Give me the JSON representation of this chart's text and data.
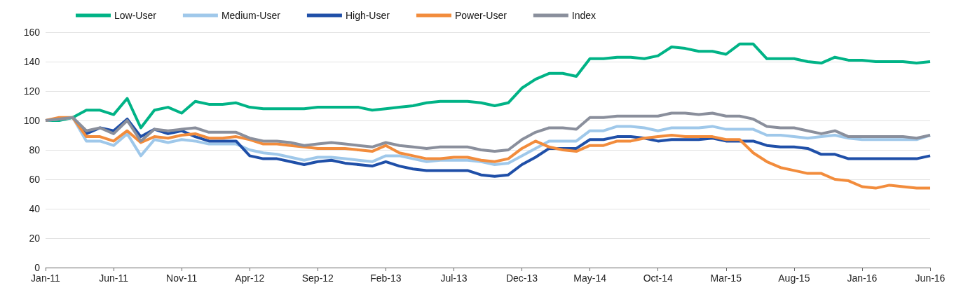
{
  "chart_data": {
    "type": "line",
    "categories": [
      "Jan-11",
      null,
      null,
      null,
      null,
      "Jun-11",
      null,
      null,
      null,
      null,
      "Nov-11",
      null,
      null,
      null,
      null,
      "Apr-12",
      null,
      null,
      null,
      null,
      "Sep-12",
      null,
      null,
      null,
      null,
      "Feb-13",
      null,
      null,
      null,
      null,
      "Jul-13",
      null,
      null,
      null,
      null,
      "Dec-13",
      null,
      null,
      null,
      null,
      "May-14",
      null,
      null,
      null,
      null,
      "Oct-14",
      null,
      null,
      null,
      null,
      "Mar-15",
      null,
      null,
      null,
      null,
      "Aug-15",
      null,
      null,
      null,
      null,
      "Jan-16",
      null,
      null,
      null,
      null,
      "Jun-16"
    ],
    "series": [
      {
        "name": "Low-User",
        "color": "#00b386",
        "values": [
          100,
          100,
          102,
          107,
          107,
          104,
          115,
          95,
          107,
          109,
          105,
          113,
          111,
          111,
          112,
          109,
          108,
          108,
          108,
          108,
          109,
          109,
          109,
          109,
          107,
          108,
          109,
          110,
          112,
          113,
          113,
          113,
          112,
          110,
          112,
          122,
          128,
          132,
          132,
          130,
          142,
          142,
          143,
          143,
          142,
          144,
          150,
          149,
          147,
          147,
          145,
          152,
          152,
          142,
          142,
          142,
          140,
          139,
          143,
          141,
          141,
          140,
          140,
          140,
          139,
          140
        ]
      },
      {
        "name": "Medium-User",
        "color": "#9fc8ea",
        "values": [
          100,
          101,
          102,
          86,
          86,
          83,
          91,
          76,
          87,
          85,
          87,
          86,
          84,
          84,
          84,
          80,
          78,
          77,
          75,
          73,
          75,
          75,
          74,
          73,
          72,
          76,
          76,
          74,
          72,
          73,
          73,
          73,
          72,
          70,
          71,
          76,
          81,
          86,
          86,
          86,
          93,
          93,
          96,
          96,
          95,
          93,
          95,
          95,
          95,
          96,
          94,
          94,
          94,
          90,
          90,
          89,
          88,
          89,
          90,
          88,
          87,
          87,
          87,
          87,
          87,
          90
        ]
      },
      {
        "name": "High-User",
        "color": "#1f4fa8",
        "values": [
          null,
          null,
          102,
          91,
          95,
          93,
          101,
          89,
          94,
          91,
          93,
          89,
          86,
          86,
          86,
          76,
          74,
          74,
          72,
          70,
          72,
          73,
          71,
          70,
          69,
          72,
          69,
          67,
          66,
          66,
          66,
          66,
          63,
          62,
          63,
          70,
          75,
          81,
          81,
          81,
          87,
          87,
          89,
          89,
          88,
          86,
          87,
          87,
          87,
          88,
          86,
          86,
          86,
          83,
          82,
          82,
          81,
          77,
          77,
          74,
          74,
          74,
          74,
          74,
          74,
          76
        ]
      },
      {
        "name": "Power-User",
        "color": "#f28c3c",
        "values": [
          100,
          102,
          102,
          89,
          89,
          86,
          93,
          85,
          89,
          88,
          90,
          91,
          88,
          88,
          89,
          87,
          84,
          84,
          83,
          82,
          81,
          81,
          81,
          80,
          79,
          83,
          78,
          76,
          74,
          74,
          75,
          75,
          73,
          72,
          74,
          81,
          86,
          82,
          80,
          79,
          83,
          83,
          86,
          86,
          88,
          89,
          90,
          89,
          89,
          89,
          87,
          87,
          78,
          72,
          68,
          66,
          64,
          64,
          60,
          59,
          55,
          54,
          56,
          55,
          54,
          54
        ]
      },
      {
        "name": "Index",
        "color": "#8a8f9c",
        "values": [
          100,
          101,
          102,
          93,
          95,
          91,
          100,
          86,
          94,
          93,
          94,
          95,
          92,
          92,
          92,
          88,
          86,
          86,
          85,
          83,
          84,
          85,
          84,
          83,
          82,
          85,
          83,
          82,
          81,
          82,
          82,
          82,
          80,
          79,
          80,
          87,
          92,
          95,
          95,
          94,
          102,
          102,
          103,
          103,
          103,
          103,
          105,
          105,
          104,
          105,
          103,
          103,
          101,
          96,
          95,
          95,
          93,
          91,
          93,
          89,
          89,
          89,
          89,
          89,
          88,
          90
        ]
      }
    ],
    "ylim": [
      0,
      160
    ],
    "yticks": [
      0,
      20,
      40,
      60,
      80,
      100,
      120,
      140,
      160
    ],
    "grid": "y",
    "legend": "top left",
    "marker": "none",
    "line_style": "solid"
  }
}
